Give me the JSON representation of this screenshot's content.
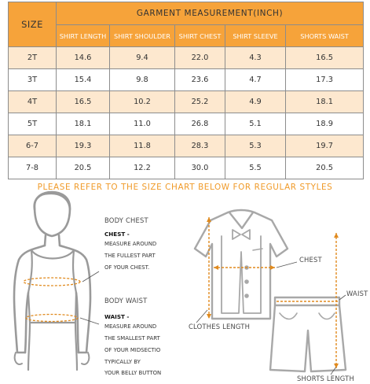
{
  "table": {
    "size_header": "SIZE",
    "group_header": "GARMENT MEASUREMENT(INCH)",
    "columns": [
      "SHIRT LENGTH",
      "SHIRT SHOULDER",
      "SHIRT CHEST",
      "SHIRT SLEEVE",
      "SHORTS WAIST"
    ],
    "rows": [
      {
        "size": "2T",
        "values": [
          "14.6",
          "9.4",
          "22.0",
          "4.3",
          "16.5"
        ]
      },
      {
        "size": "3T",
        "values": [
          "15.4",
          "9.8",
          "23.6",
          "4.7",
          "17.3"
        ]
      },
      {
        "size": "4T",
        "values": [
          "16.5",
          "10.2",
          "25.2",
          "4.9",
          "18.1"
        ]
      },
      {
        "size": "5T",
        "values": [
          "18.1",
          "11.0",
          "26.8",
          "5.1",
          "18.9"
        ]
      },
      {
        "size": "6-7",
        "values": [
          "19.3",
          "11.8",
          "28.3",
          "5.3",
          "19.7"
        ]
      },
      {
        "size": "7-8",
        "values": [
          "20.5",
          "12.2",
          "30.0",
          "5.5",
          "20.5"
        ]
      }
    ]
  },
  "refer_text": "PLEASE REFER TO THE SIZE CHART BELOW FOR REGULAR STYLES",
  "body_guide": {
    "chest_title": "BODY CHEST",
    "chest_term": "CHEST -",
    "chest_lines": [
      "MEASURE AROUND",
      "THE FULLEST PART",
      "OF YOUR CHEST."
    ],
    "waist_title": "BODY WAIST",
    "waist_term": "WAIST -",
    "waist_lines": [
      "MEASURE AROUND",
      "THE SMALLEST PART",
      "OF YOUR MIDSECTIO",
      "TYPICALLY BY",
      "YOUR BELLY BUTTON"
    ]
  },
  "garment_guide": {
    "chest": "CHEST",
    "waist": "WAIST",
    "clothes_length": "CLOTHES LENGTH",
    "shorts_length": "SHORTS LENGTH"
  },
  "colors": {
    "header_orange": "#f6a33a",
    "row_tint": "#fde8cf",
    "accent_orange": "#f09a28",
    "measure_line": "#e08a1e"
  }
}
